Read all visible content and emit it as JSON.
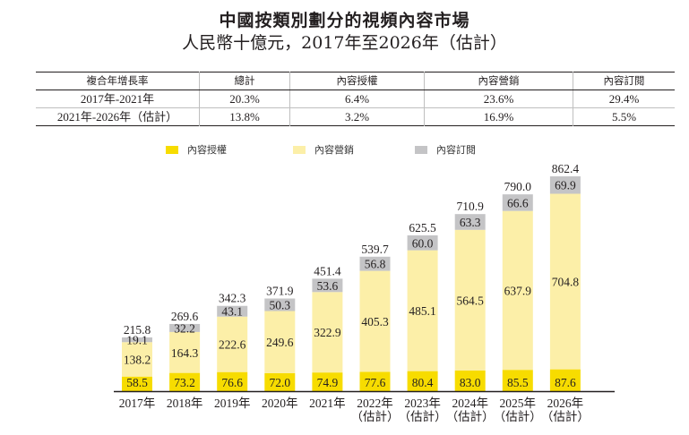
{
  "title": {
    "line1": "中國按類別劃分的視頻內容市場",
    "line2": "人民幣十億元，2017年至2026年（估計）"
  },
  "cagr_table": {
    "headers": [
      "複合年增長率",
      "總計",
      "內容授權",
      "內容營銷",
      "內容訂閱"
    ],
    "rows": [
      [
        "2017年-2021年",
        "20.3%",
        "6.4%",
        "23.6%",
        "29.4%"
      ],
      [
        "2021年-2026年（估計）",
        "13.8%",
        "3.2%",
        "16.9%",
        "5.5%"
      ]
    ]
  },
  "colors": {
    "licensing": "#f7dc00",
    "marketing": "#fcefa8",
    "subscription": "#c4c4c6",
    "text": "#231f20",
    "axis": "#231f20"
  },
  "chart_data": {
    "type": "bar",
    "stacked": true,
    "title": "中國按類別劃分的視頻內容市場",
    "subtitle": "人民幣十億元，2017年至2026年（估計）",
    "xlabel": "",
    "ylabel": "人民幣十億元",
    "legend_position": "top",
    "grid": false,
    "categories": [
      "2017年",
      "2018年",
      "2019年",
      "2020年",
      "2021年",
      "2022年",
      "2023年",
      "2024年",
      "2025年",
      "2026年"
    ],
    "category_sublabels": [
      "",
      "",
      "",
      "",
      "",
      "（估計）",
      "（估計）",
      "（估計）",
      "（估計）",
      "（估計）"
    ],
    "ylim": [
      0,
      862.4
    ],
    "series": [
      {
        "name": "內容授權",
        "color_key": "licensing",
        "values": [
          58.5,
          73.2,
          76.6,
          72.0,
          74.9,
          77.6,
          80.4,
          83.0,
          85.5,
          87.6
        ]
      },
      {
        "name": "內容營銷",
        "color_key": "marketing",
        "values": [
          138.2,
          164.3,
          222.6,
          249.6,
          322.9,
          405.3,
          485.1,
          564.5,
          637.9,
          704.8
        ]
      },
      {
        "name": "內容訂閱",
        "color_key": "subscription",
        "values": [
          19.1,
          32.2,
          43.1,
          50.3,
          53.6,
          56.8,
          60.0,
          63.3,
          66.6,
          69.9
        ]
      }
    ],
    "totals": [
      215.8,
      269.6,
      342.3,
      371.9,
      451.4,
      539.7,
      625.5,
      710.9,
      790.0,
      862.4
    ]
  }
}
